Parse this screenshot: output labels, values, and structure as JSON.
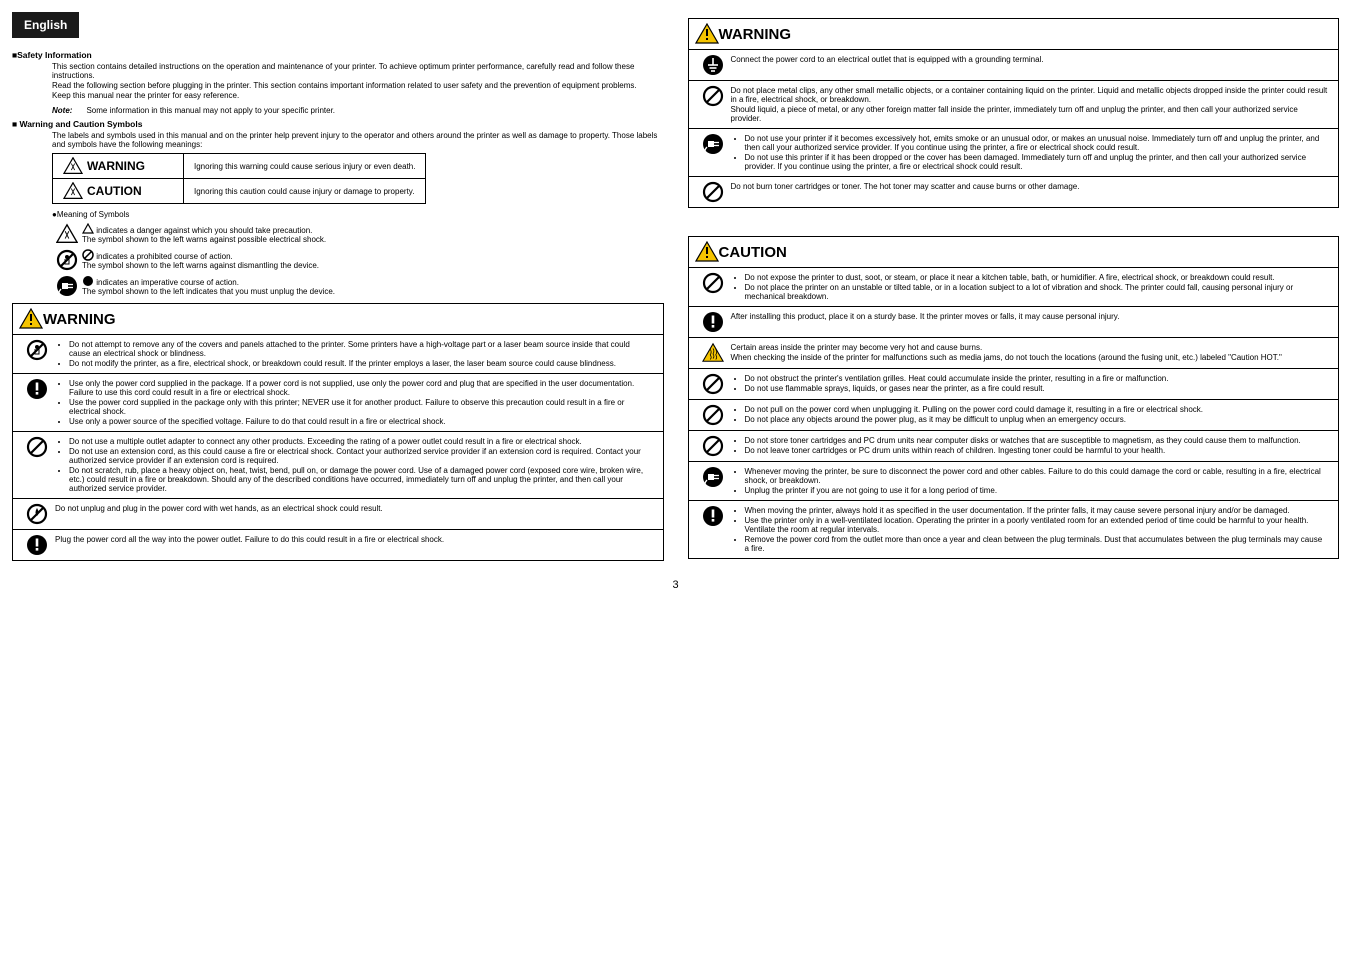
{
  "colors": {
    "lang_badge_bg": "#1a1a1a",
    "warning_yellow": "#f5c400",
    "text": "#000000"
  },
  "lang_title": "English",
  "page_number": "3",
  "safety": {
    "title": "■Safety Information",
    "p1": "This section contains detailed instructions on the operation and maintenance of your printer. To achieve optimum printer performance, carefully read and follow these instructions.",
    "p2": "Read the following section before plugging in the printer. This section contains important information related to user safety and the prevention of equipment problems.",
    "p3": "Keep this manual near the printer for easy reference.",
    "note_label": "Note:",
    "note_text": "Some information in this manual may not apply to your specific printer."
  },
  "symbols": {
    "title": "■ Warning and Caution Symbols",
    "intro": "The labels and symbols used in this manual and on the printer help prevent injury to the operator and others around the printer as well as damage to property. Those labels and symbols have the following meanings:",
    "warning_label": "WARNING",
    "warning_text": "Ignoring this warning could cause serious injury or even death.",
    "caution_label": "CAUTION",
    "caution_text": "Ignoring this caution could cause injury or damage to property.",
    "meaning_title": "●Meaning of Symbols",
    "tri_desc_l1": "indicates a danger against which you should take precaution.",
    "tri_desc_l2": "The symbol shown to the left warns against possible electrical shock.",
    "no_desc_l1": "indicates a prohibited course of action.",
    "no_desc_l2": "The symbol shown to the left warns against dismantling the device.",
    "dot_desc_l1": "indicates an imperative course of action.",
    "dot_desc_l2": "The symbol shown to the left indicates that you must unplug the device."
  },
  "warning1": {
    "title": "WARNING",
    "rows": [
      {
        "icon": "no-disassemble",
        "bullets": [
          "Do not attempt to remove any of the covers and panels attached to the printer. Some printers have a high-voltage part or a laser beam source inside that could cause an electrical shock or blindness.",
          "Do not modify the printer, as a fire, electrical shock, or breakdown could result. If the printer employs a laser, the laser beam source could cause blindness."
        ]
      },
      {
        "icon": "excl-black",
        "bullets": [
          "Use only the power cord supplied in the package. If a power cord is not supplied, use only the power cord and plug that are specified in the user documentation. Failure to use this cord could result in a fire or electrical shock.",
          "Use the power cord supplied in the package only with this printer; NEVER use it for another product. Failure to observe this precaution could result in a fire or electrical shock.",
          "Use only a power source of the specified voltage. Failure to do that could result in a fire or electrical shock."
        ]
      },
      {
        "icon": "no",
        "bullets": [
          "Do not use a multiple outlet adapter to connect any other products. Exceeding the rating of a power outlet could result in a fire or electrical shock.",
          "Do not use an extension cord, as this could cause a fire or electrical shock. Contact your authorized service provider if an extension cord is required. Contact your authorized service provider if an extension cord is required.",
          "Do not scratch, rub, place a heavy object on, heat, twist, bend, pull on, or damage the power cord. Use of a damaged power cord (exposed core wire, broken wire, etc.) could result in a fire or breakdown. Should any of the described conditions have occurred, immediately turn off and unplug the printer, and then call your authorized service provider."
        ]
      },
      {
        "icon": "no-wet",
        "text": "Do not unplug and plug in the power cord with wet hands, as an electrical shock could result."
      },
      {
        "icon": "excl-black",
        "text": "Plug the power cord all the way into the power outlet. Failure to do this could result in a fire or electrical shock."
      }
    ]
  },
  "warning2": {
    "title": "WARNING",
    "rows": [
      {
        "icon": "ground",
        "text": "Connect the power cord to an electrical outlet that is equipped with a grounding terminal."
      },
      {
        "icon": "no",
        "para": [
          "Do not place metal clips, any other small metallic objects, or a container containing liquid on the printer. Liquid and metallic objects dropped inside the printer could result in a fire, electrical shock, or breakdown.",
          "Should liquid, a piece of metal, or any other foreign matter fall inside the printer, immediately turn off and unplug the printer, and then call your authorized service provider."
        ]
      },
      {
        "icon": "unplug",
        "bullets": [
          "Do not use your printer if it becomes excessively hot, emits smoke or an unusual odor, or makes an unusual noise. Immediately turn off and unplug the printer, and then call your authorized service provider. If you continue using the printer, a fire or electrical shock could result.",
          "Do not use this printer if it has been dropped or the cover has been damaged. Immediately turn off and unplug the printer, and then call your authorized service provider. If you continue using the printer, a fire or electrical shock could result."
        ]
      },
      {
        "icon": "no",
        "text": "Do not burn toner cartridges or toner. The hot toner may scatter and cause burns or other damage."
      }
    ]
  },
  "caution": {
    "title": "CAUTION",
    "rows": [
      {
        "icon": "no",
        "bullets": [
          "Do not expose the printer to dust, soot, or steam, or place it near a kitchen table, bath, or humidifier. A fire, electrical shock, or breakdown could result.",
          "Do not place the printer on an unstable or tilted table, or in a location subject to a lot of vibration and shock. The printer could fall, causing personal injury or mechanical breakdown."
        ]
      },
      {
        "icon": "excl-black",
        "text": "After installing this product, place it on a sturdy base. It the printer moves or falls, it may cause personal injury."
      },
      {
        "icon": "hot",
        "para": [
          "Certain areas inside the printer may become very hot and cause burns.",
          "When checking the inside of the printer for malfunctions such as media jams, do not touch the locations (around the fusing unit, etc.) labeled \"Caution HOT.\""
        ]
      },
      {
        "icon": "no",
        "bullets": [
          "Do not obstruct the printer's ventilation grilles. Heat could accumulate inside the printer, resulting in a fire or malfunction.",
          "Do not use flammable sprays, liquids, or gases near the printer, as a fire could result."
        ]
      },
      {
        "icon": "no",
        "bullets": [
          "Do not pull on the power cord when unplugging it. Pulling on the power cord could damage it, resulting in a fire or electrical shock.",
          "Do not place any objects around the power plug, as it may be difficult to unplug when an emergency occurs."
        ]
      },
      {
        "icon": "no",
        "bullets": [
          "Do not store toner cartridges and PC drum units near computer disks or watches that are susceptible to magnetism, as they could cause them to malfunction.",
          "Do not leave toner cartridges or PC drum units within reach of children. Ingesting toner could be harmful to your health."
        ]
      },
      {
        "icon": "unplug",
        "bullets": [
          "Whenever moving the printer, be sure to disconnect the power cord and other cables. Failure to do this could damage the cord or cable, resulting in a fire, electrical shock, or breakdown.",
          "Unplug the printer if you are not going to use it for a long period of time."
        ]
      },
      {
        "icon": "excl-black",
        "bullets": [
          "When moving the printer, always hold it as specified in the user documentation. If the printer falls, it may cause severe personal injury and/or be damaged.",
          "Use the printer only in a well-ventilated location. Operating the printer in a poorly ventilated room for an extended period of time could be harmful to your health. Ventilate the room at regular intervals.",
          "Remove the power cord from the outlet more than once a year and clean between the plug terminals. Dust that accumulates between the plug terminals may cause a fire."
        ]
      }
    ]
  }
}
